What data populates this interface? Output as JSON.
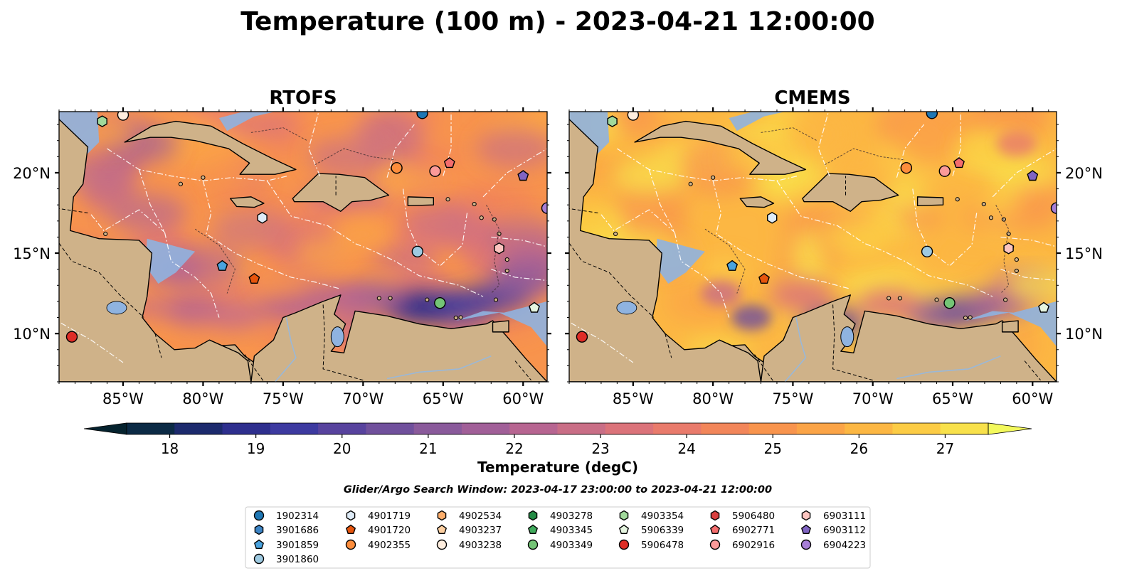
{
  "title": "Temperature (100 m) - 2023-04-21 12:00:00",
  "panels": [
    {
      "title": "RTOFS",
      "id": "rtofs"
    },
    {
      "title": "CMEMS",
      "id": "cmems"
    }
  ],
  "lon_ticks": [
    {
      "lon": -85,
      "label": "85°W"
    },
    {
      "lon": -80,
      "label": "80°W"
    },
    {
      "lon": -75,
      "label": "75°W"
    },
    {
      "lon": -70,
      "label": "70°W"
    },
    {
      "lon": -65,
      "label": "65°W"
    },
    {
      "lon": -60,
      "label": "60°W"
    }
  ],
  "lat_ticks": [
    {
      "lat": 10,
      "label": "10°N"
    },
    {
      "lat": 15,
      "label": "15°N"
    },
    {
      "lat": 20,
      "label": "20°N"
    }
  ],
  "extent": {
    "lon": [
      -89,
      -58.5
    ],
    "lat": [
      7,
      23.8
    ]
  },
  "colorbar": {
    "label": "Temperature (degC)",
    "min": 17.5,
    "max": 27.5,
    "ticks": [
      "18",
      "19",
      "20",
      "21",
      "22",
      "23",
      "24",
      "25",
      "26",
      "27"
    ],
    "colors": [
      "#0b2a45",
      "#1c2a6d",
      "#2e2f8e",
      "#3d3aa0",
      "#58439e",
      "#70509c",
      "#8a5a9b",
      "#a15f98",
      "#b76591",
      "#c96e86",
      "#db737a",
      "#e97b6c",
      "#f2865a",
      "#f8944d",
      "#fba447",
      "#fcb743",
      "#fccc45",
      "#f8e14b"
    ],
    "under_color": "#05222e",
    "over_color": "#f3f95c"
  },
  "search_window": "Glider/Argo Search Window: 2023-04-17 23:00:00 to 2023-04-21 12:00:00",
  "floats": [
    {
      "id": "1902314",
      "marker": "circle",
      "color": "#1f77b4",
      "lon": -66.3,
      "lat": 23.7
    },
    {
      "id": "3901686",
      "marker": "hexagon",
      "color": "#3d85c6",
      "lon": null,
      "lat": null
    },
    {
      "id": "3901859",
      "marker": "pentagon",
      "color": "#4aa3df",
      "lon": -78.8,
      "lat": 14.2
    },
    {
      "id": "3901860",
      "marker": "circle",
      "color": "#9ecae1",
      "lon": -66.6,
      "lat": 15.1
    },
    {
      "id": "4901719",
      "marker": "hexagon",
      "color": "#deebf7",
      "lon": -76.3,
      "lat": 17.2
    },
    {
      "id": "4901720",
      "marker": "pentagon",
      "color": "#e6550d",
      "lon": -76.8,
      "lat": 13.4
    },
    {
      "id": "4902355",
      "marker": "circle",
      "color": "#fd8d3c",
      "lon": -67.9,
      "lat": 20.3
    },
    {
      "id": "4902534",
      "marker": "hexagon",
      "color": "#fdae6b",
      "lon": null,
      "lat": null
    },
    {
      "id": "4903237",
      "marker": "pentagon",
      "color": "#fdd0a2",
      "lon": null,
      "lat": null
    },
    {
      "id": "4903238",
      "marker": "circle",
      "color": "#feedde",
      "lon": -85.0,
      "lat": 23.6
    },
    {
      "id": "4903278",
      "marker": "hexagon",
      "color": "#238b45",
      "lon": null,
      "lat": null
    },
    {
      "id": "4903345",
      "marker": "pentagon",
      "color": "#41ab5d",
      "lon": null,
      "lat": null
    },
    {
      "id": "4903349",
      "marker": "circle",
      "color": "#74c476",
      "lon": -65.2,
      "lat": 11.9
    },
    {
      "id": "4903354",
      "marker": "hexagon",
      "color": "#a1d99b",
      "lon": -86.3,
      "lat": 23.2
    },
    {
      "id": "5906339",
      "marker": "pentagon",
      "color": "#e5f5e0",
      "lon": -59.3,
      "lat": 11.6
    },
    {
      "id": "5906478",
      "marker": "circle",
      "color": "#de2d26",
      "lon": -88.2,
      "lat": 9.8
    },
    {
      "id": "5906480",
      "marker": "hexagon",
      "color": "#d94040",
      "lon": null,
      "lat": null
    },
    {
      "id": "6902771",
      "marker": "pentagon",
      "color": "#f46d6d",
      "lon": -64.6,
      "lat": 20.6
    },
    {
      "id": "6902916",
      "marker": "circle",
      "color": "#fb9a99",
      "lon": -65.5,
      "lat": 20.1
    },
    {
      "id": "6903111",
      "marker": "hexagon",
      "color": "#fcc5c0",
      "lon": -61.5,
      "lat": 15.3
    },
    {
      "id": "6903112",
      "marker": "pentagon",
      "color": "#8064c2",
      "lon": -60.0,
      "lat": 19.8
    },
    {
      "id": "6904223",
      "marker": "circle",
      "color": "#a77fd6",
      "lon": -58.5,
      "lat": 17.8
    }
  ]
}
